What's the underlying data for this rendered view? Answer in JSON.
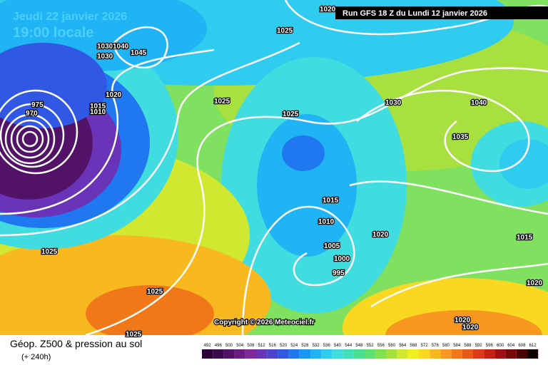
{
  "header": {
    "date": "Jeudi 22 janvier 2026",
    "time": "19:00 locale",
    "run": "Run GFS 18 Z du Lundi 12 janvier 2026"
  },
  "copyright": "Copyright © 2026 Meteociel.fr",
  "legend": {
    "title": "Géop. Z500 & pression au sol",
    "lead": "(+ 240h)",
    "scale": [
      {
        "value": 492,
        "color": "#2a0038"
      },
      {
        "value": 496,
        "color": "#3c0a4e"
      },
      {
        "value": 500,
        "color": "#521266"
      },
      {
        "value": 504,
        "color": "#6a1c80"
      },
      {
        "value": 508,
        "color": "#802898"
      },
      {
        "value": 512,
        "color": "#6a34b8"
      },
      {
        "value": 516,
        "color": "#4a44d0"
      },
      {
        "value": 520,
        "color": "#3058e4"
      },
      {
        "value": 524,
        "color": "#2078f0"
      },
      {
        "value": 528,
        "color": "#1898f4"
      },
      {
        "value": 532,
        "color": "#20b4f4"
      },
      {
        "value": 536,
        "color": "#30ccf0"
      },
      {
        "value": 540,
        "color": "#40dce0"
      },
      {
        "value": 544,
        "color": "#40e0b8"
      },
      {
        "value": 548,
        "color": "#48e090"
      },
      {
        "value": 552,
        "color": "#60e070"
      },
      {
        "value": 556,
        "color": "#80e050"
      },
      {
        "value": 560,
        "color": "#a8e040"
      },
      {
        "value": 564,
        "color": "#d0e830"
      },
      {
        "value": 568,
        "color": "#f0f020"
      },
      {
        "value": 572,
        "color": "#f8d820"
      },
      {
        "value": 576,
        "color": "#f8b820"
      },
      {
        "value": 580,
        "color": "#f89820"
      },
      {
        "value": 584,
        "color": "#f07818"
      },
      {
        "value": 588,
        "color": "#e85818"
      },
      {
        "value": 592,
        "color": "#e03818"
      },
      {
        "value": 596,
        "color": "#c82010"
      },
      {
        "value": 600,
        "color": "#a01010"
      },
      {
        "value": 604,
        "color": "#780808"
      },
      {
        "value": 608,
        "color": "#480404"
      },
      {
        "value": 612,
        "color": "#100000"
      }
    ]
  },
  "isobars": [
    "1020",
    "1025",
    "1030",
    "1040",
    "1030",
    "1045",
    "1020",
    "1015",
    "1010",
    "975",
    "970",
    "1025",
    "1025",
    "1030",
    "1040",
    "1035",
    "1015",
    "1010",
    "1020",
    "1015",
    "1005",
    "1000",
    "995",
    "1025",
    "1025",
    "1025",
    "1020",
    "1020",
    "1020"
  ]
}
